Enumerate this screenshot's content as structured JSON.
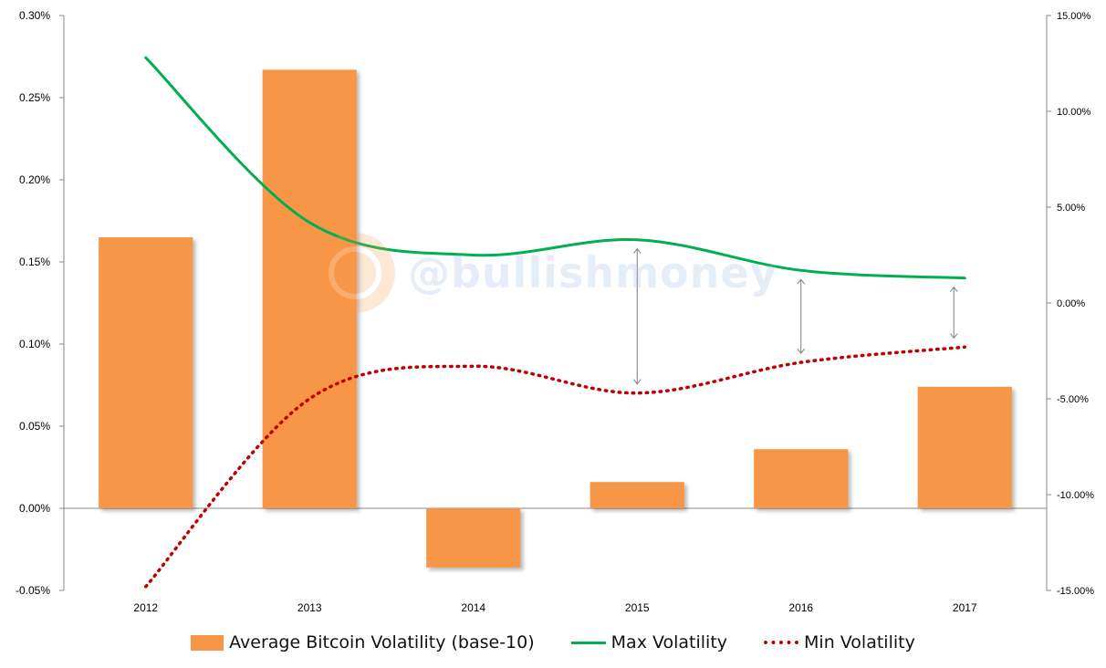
{
  "chart_data": {
    "type": "bar",
    "categories": [
      "2012",
      "2013",
      "2014",
      "2015",
      "2016",
      "2017"
    ],
    "series": [
      {
        "name": "Average Bitcoin Volatility (base-10)",
        "type": "bar",
        "axis": "left",
        "color": "#F79646",
        "values": [
          0.00165,
          0.00267,
          -0.00036,
          0.00016,
          0.00036,
          0.00074
        ]
      },
      {
        "name": "Max Volatility",
        "type": "line",
        "axis": "right",
        "style": "solid",
        "color": "#00B050",
        "values": [
          0.128,
          0.042,
          0.025,
          0.033,
          0.017,
          0.013
        ]
      },
      {
        "name": "Min Volatility",
        "type": "line",
        "axis": "right",
        "style": "dotted",
        "color": "#C00000",
        "values": [
          -0.148,
          -0.05,
          -0.033,
          -0.047,
          -0.031,
          -0.023
        ]
      }
    ],
    "left_axis": {
      "min": -0.0005,
      "max": 0.003,
      "ticks": [
        "-0.05%",
        "0.00%",
        "0.05%",
        "0.10%",
        "0.15%",
        "0.20%",
        "0.25%",
        "0.30%"
      ]
    },
    "right_axis": {
      "min": -0.15,
      "max": 0.15,
      "ticks": [
        "-15.00%",
        "-10.00%",
        "-5.00%",
        "0.00%",
        "5.00%",
        "10.00%",
        "15.00%"
      ]
    },
    "annotations": [
      {
        "type": "double-arrow",
        "category": "2015"
      },
      {
        "type": "double-arrow",
        "category": "2016"
      },
      {
        "type": "double-arrow",
        "category": "2017"
      }
    ],
    "grid": false,
    "legend_position": "bottom"
  },
  "watermark": {
    "text": "@bullishmoney"
  }
}
